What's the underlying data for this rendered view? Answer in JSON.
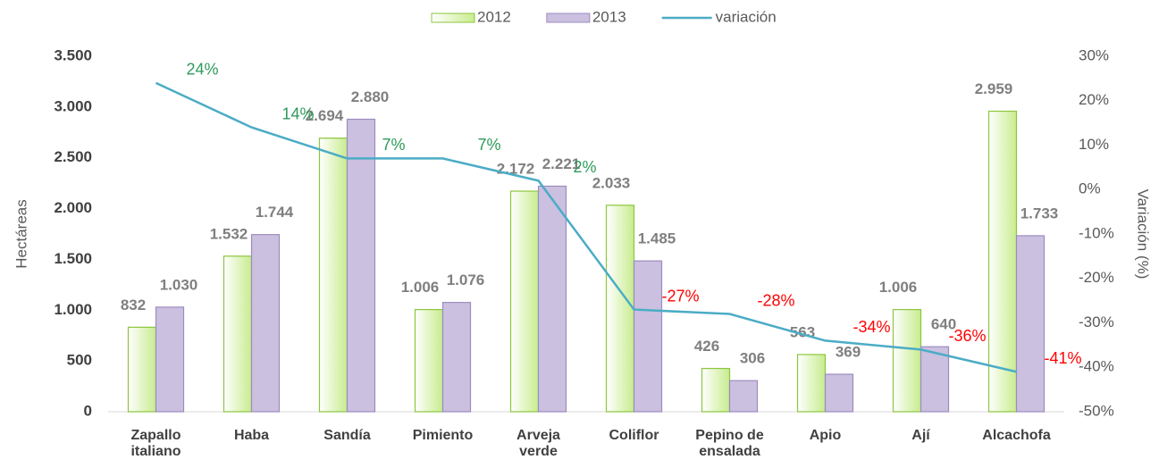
{
  "chart_data": {
    "type": "bar",
    "categories": [
      "Zapallo\nitaliano",
      "Haba",
      "Sandía",
      "Pimiento",
      "Arveja\nverde",
      "Coliflor",
      "Pepino de\nensalada",
      "Apio",
      "Ají",
      "Alcachofa"
    ],
    "series": [
      {
        "name": "2012",
        "color": "#c8ec8e",
        "edge_color": "#8dc63f",
        "values": [
          832,
          1532,
          2694,
          1006,
          2172,
          2033,
          426,
          563,
          1006,
          2959
        ],
        "value_labels": [
          "832",
          "1.532",
          "2.694",
          "1.006",
          "2.172",
          "2.033",
          "426",
          "563",
          "1.006",
          "2.959"
        ]
      },
      {
        "name": "2013",
        "color": "#cbc0df",
        "edge_color": "#9c8cc0",
        "values": [
          1030,
          1744,
          2880,
          1076,
          2221,
          1485,
          306,
          369,
          640,
          1733
        ],
        "value_labels": [
          "1.030",
          "1.744",
          "2.880",
          "1.076",
          "2.221",
          "1.485",
          "306",
          "369",
          "640",
          "1.733"
        ]
      },
      {
        "name": "variación",
        "type": "line",
        "axis": "y2",
        "color": "#4bacc6",
        "values": [
          24,
          14,
          7,
          7,
          2,
          -27,
          -28,
          -34,
          -36,
          -41
        ],
        "value_labels": [
          "24%",
          "14%",
          "7%",
          "7%",
          "2%",
          "-27%",
          "-28%",
          "-34%",
          "-36%",
          "-41%"
        ],
        "positive_label_color": "#2e9a5a",
        "negative_label_color": "#ff0000"
      }
    ],
    "y_label": "Hectáreas",
    "y2_label": "Variación (%)",
    "ylim": [
      0,
      3500
    ],
    "yticks": [
      0,
      {
        "value": 500,
        "label": "500"
      },
      {
        "value": 1000,
        "label": "1.000"
      },
      {
        "value": 1500,
        "label": "1.500"
      },
      {
        "value": 2000,
        "label": "2.000"
      },
      {
        "value": 2500,
        "label": "2.500"
      },
      {
        "value": 3000,
        "label": "3.000"
      },
      {
        "value": 3500,
        "label": "3.500"
      }
    ],
    "y2lim": [
      -50,
      30
    ],
    "y2ticks": [
      {
        "value": -50,
        "label": "-50%"
      },
      {
        "value": -40,
        "label": "-40%"
      },
      {
        "value": -30,
        "label": "-30%"
      },
      {
        "value": -20,
        "label": "-20%"
      },
      {
        "value": -10,
        "label": "-10%"
      },
      {
        "value": 0,
        "label": "0%"
      },
      {
        "value": 10,
        "label": "10%"
      },
      {
        "value": 20,
        "label": "20%"
      },
      {
        "value": 30,
        "label": "30%"
      }
    ],
    "legend": "top",
    "grid": false
  }
}
